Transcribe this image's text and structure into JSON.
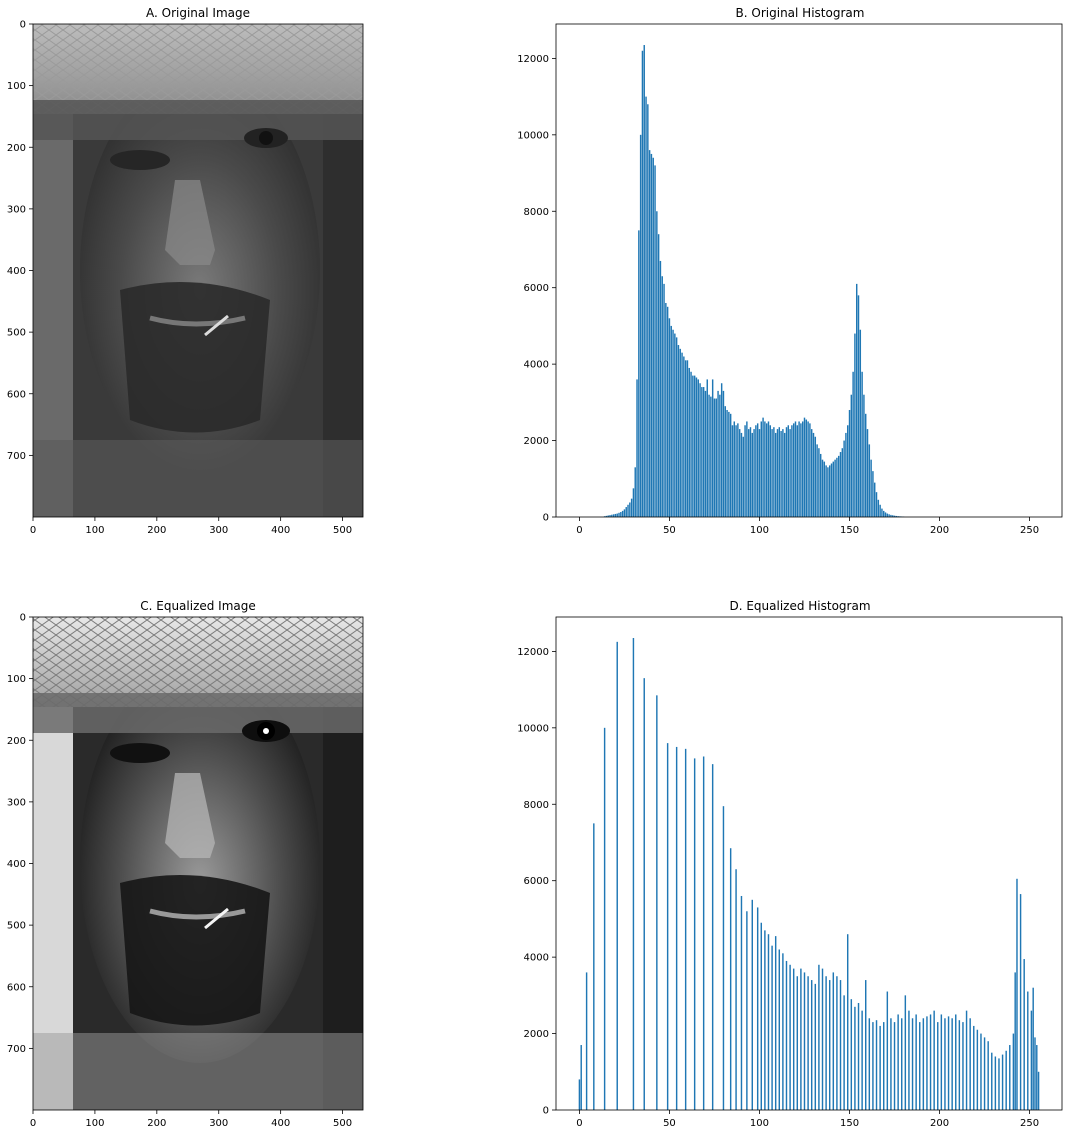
{
  "chart_data": [
    {
      "panel": "A",
      "type": "image",
      "title": "A. Original Image",
      "x_ticks": [
        0,
        100,
        200,
        300,
        400,
        500
      ],
      "y_ticks": [
        0,
        100,
        200,
        300,
        400,
        500,
        600,
        700
      ],
      "xlim": [
        0,
        533
      ],
      "ylim": [
        800,
        0
      ],
      "content": "grayscale-portrait-low-contrast"
    },
    {
      "panel": "B",
      "type": "bar",
      "title": "B. Original Histogram",
      "x_ticks": [
        0,
        50,
        100,
        150,
        200,
        250
      ],
      "y_ticks": [
        0,
        2000,
        4000,
        6000,
        8000,
        10000,
        12000
      ],
      "xlim": [
        -13,
        268
      ],
      "ylim": [
        0,
        12900
      ],
      "color": "#1f77b4",
      "bars": [
        [
          14,
          20
        ],
        [
          15,
          30
        ],
        [
          16,
          40
        ],
        [
          17,
          50
        ],
        [
          18,
          60
        ],
        [
          19,
          70
        ],
        [
          20,
          80
        ],
        [
          21,
          90
        ],
        [
          22,
          110
        ],
        [
          23,
          130
        ],
        [
          24,
          160
        ],
        [
          25,
          200
        ],
        [
          26,
          260
        ],
        [
          27,
          320
        ],
        [
          28,
          380
        ],
        [
          29,
          480
        ],
        [
          30,
          750
        ],
        [
          31,
          1300
        ],
        [
          32,
          3600
        ],
        [
          33,
          7500
        ],
        [
          34,
          10000
        ],
        [
          35,
          12200
        ],
        [
          36,
          12350
        ],
        [
          37,
          11000
        ],
        [
          38,
          10800
        ],
        [
          39,
          9600
        ],
        [
          40,
          9500
        ],
        [
          41,
          9400
        ],
        [
          42,
          9200
        ],
        [
          43,
          8000
        ],
        [
          44,
          7400
        ],
        [
          45,
          6700
        ],
        [
          46,
          6300
        ],
        [
          47,
          6100
        ],
        [
          48,
          5600
        ],
        [
          49,
          5500
        ],
        [
          50,
          5200
        ],
        [
          51,
          5000
        ],
        [
          52,
          4900
        ],
        [
          53,
          4800
        ],
        [
          54,
          4700
        ],
        [
          55,
          4500
        ],
        [
          56,
          4400
        ],
        [
          57,
          4300
        ],
        [
          58,
          4200
        ],
        [
          59,
          4100
        ],
        [
          60,
          4100
        ],
        [
          61,
          3900
        ],
        [
          62,
          3800
        ],
        [
          63,
          3700
        ],
        [
          64,
          3700
        ],
        [
          65,
          3650
        ],
        [
          66,
          3600
        ],
        [
          67,
          3500
        ],
        [
          68,
          3400
        ],
        [
          69,
          3400
        ],
        [
          70,
          3300
        ],
        [
          71,
          3600
        ],
        [
          72,
          3200
        ],
        [
          73,
          3150
        ],
        [
          74,
          3600
        ],
        [
          75,
          3100
        ],
        [
          76,
          3100
        ],
        [
          77,
          3300
        ],
        [
          78,
          3200
        ],
        [
          79,
          3500
        ],
        [
          80,
          3300
        ],
        [
          81,
          2900
        ],
        [
          82,
          2800
        ],
        [
          83,
          2750
        ],
        [
          84,
          2700
        ],
        [
          85,
          2400
        ],
        [
          86,
          2500
        ],
        [
          87,
          2400
        ],
        [
          88,
          2450
        ],
        [
          89,
          2300
        ],
        [
          90,
          2200
        ],
        [
          91,
          2100
        ],
        [
          92,
          2400
        ],
        [
          93,
          2500
        ],
        [
          94,
          2300
        ],
        [
          95,
          2350
        ],
        [
          96,
          2200
        ],
        [
          97,
          2300
        ],
        [
          98,
          2400
        ],
        [
          99,
          2450
        ],
        [
          100,
          2300
        ],
        [
          101,
          2500
        ],
        [
          102,
          2600
        ],
        [
          103,
          2500
        ],
        [
          104,
          2450
        ],
        [
          105,
          2500
        ],
        [
          106,
          2400
        ],
        [
          107,
          2300
        ],
        [
          108,
          2350
        ],
        [
          109,
          2200
        ],
        [
          110,
          2300
        ],
        [
          111,
          2350
        ],
        [
          112,
          2250
        ],
        [
          113,
          2300
        ],
        [
          114,
          2200
        ],
        [
          115,
          2350
        ],
        [
          116,
          2400
        ],
        [
          117,
          2300
        ],
        [
          118,
          2400
        ],
        [
          119,
          2450
        ],
        [
          120,
          2500
        ],
        [
          121,
          2400
        ],
        [
          122,
          2500
        ],
        [
          123,
          2450
        ],
        [
          124,
          2500
        ],
        [
          125,
          2600
        ],
        [
          126,
          2550
        ],
        [
          127,
          2500
        ],
        [
          128,
          2450
        ],
        [
          129,
          2300
        ],
        [
          130,
          2200
        ],
        [
          131,
          2100
        ],
        [
          132,
          1900
        ],
        [
          133,
          1800
        ],
        [
          134,
          1650
        ],
        [
          135,
          1500
        ],
        [
          136,
          1450
        ],
        [
          137,
          1350
        ],
        [
          138,
          1300
        ],
        [
          139,
          1350
        ],
        [
          140,
          1400
        ],
        [
          141,
          1450
        ],
        [
          142,
          1500
        ],
        [
          143,
          1550
        ],
        [
          144,
          1600
        ],
        [
          145,
          1700
        ],
        [
          146,
          1800
        ],
        [
          147,
          2000
        ],
        [
          148,
          2200
        ],
        [
          149,
          2400
        ],
        [
          150,
          2800
        ],
        [
          151,
          3200
        ],
        [
          152,
          3800
        ],
        [
          153,
          4800
        ],
        [
          154,
          6100
        ],
        [
          155,
          5800
        ],
        [
          156,
          4900
        ],
        [
          157,
          3800
        ],
        [
          158,
          3200
        ],
        [
          159,
          2700
        ],
        [
          160,
          2300
        ],
        [
          161,
          1900
        ],
        [
          162,
          1500
        ],
        [
          163,
          1200
        ],
        [
          164,
          900
        ],
        [
          165,
          650
        ],
        [
          166,
          450
        ],
        [
          167,
          320
        ],
        [
          168,
          220
        ],
        [
          169,
          160
        ],
        [
          170,
          120
        ],
        [
          171,
          90
        ],
        [
          172,
          70
        ],
        [
          173,
          55
        ],
        [
          174,
          45
        ],
        [
          175,
          35
        ],
        [
          176,
          28
        ],
        [
          177,
          22
        ],
        [
          178,
          18
        ],
        [
          179,
          14
        ],
        [
          180,
          10
        ]
      ]
    },
    {
      "panel": "C",
      "type": "image",
      "title": "C. Equalized Image",
      "x_ticks": [
        0,
        100,
        200,
        300,
        400,
        500
      ],
      "y_ticks": [
        0,
        100,
        200,
        300,
        400,
        500,
        600,
        700
      ],
      "xlim": [
        0,
        533
      ],
      "ylim": [
        800,
        0
      ],
      "content": "grayscale-portrait-equalized"
    },
    {
      "panel": "D",
      "type": "bar",
      "title": "D. Equalized Histogram",
      "x_ticks": [
        0,
        50,
        100,
        150,
        200,
        250
      ],
      "y_ticks": [
        0,
        2000,
        4000,
        6000,
        8000,
        10000,
        12000
      ],
      "xlim": [
        -13,
        268
      ],
      "ylim": [
        0,
        12900
      ],
      "color": "#1f77b4",
      "bars": [
        [
          0,
          800
        ],
        [
          1,
          1700
        ],
        [
          4,
          3600
        ],
        [
          8,
          7500
        ],
        [
          14,
          10000
        ],
        [
          21,
          12250
        ],
        [
          30,
          12350
        ],
        [
          36,
          11300
        ],
        [
          43,
          10850
        ],
        [
          49,
          9600
        ],
        [
          54,
          9500
        ],
        [
          59,
          9450
        ],
        [
          64,
          9200
        ],
        [
          69,
          9250
        ],
        [
          74,
          9050
        ],
        [
          80,
          7950
        ],
        [
          84,
          6850
        ],
        [
          87,
          6300
        ],
        [
          90,
          5600
        ],
        [
          93,
          5200
        ],
        [
          96,
          5500
        ],
        [
          99,
          5300
        ],
        [
          101,
          4900
        ],
        [
          103,
          4700
        ],
        [
          105,
          4600
        ],
        [
          107,
          4300
        ],
        [
          109,
          4550
        ],
        [
          111,
          4200
        ],
        [
          113,
          4100
        ],
        [
          115,
          3900
        ],
        [
          117,
          3800
        ],
        [
          119,
          3700
        ],
        [
          121,
          3500
        ],
        [
          123,
          3700
        ],
        [
          125,
          3600
        ],
        [
          127,
          3500
        ],
        [
          129,
          3400
        ],
        [
          131,
          3300
        ],
        [
          133,
          3800
        ],
        [
          135,
          3700
        ],
        [
          137,
          3500
        ],
        [
          139,
          3400
        ],
        [
          141,
          3600
        ],
        [
          143,
          3500
        ],
        [
          145,
          3400
        ],
        [
          147,
          3000
        ],
        [
          149,
          4600
        ],
        [
          151,
          2900
        ],
        [
          153,
          2700
        ],
        [
          155,
          2800
        ],
        [
          157,
          2600
        ],
        [
          159,
          3400
        ],
        [
          161,
          2400
        ],
        [
          163,
          2300
        ],
        [
          165,
          2350
        ],
        [
          167,
          2200
        ],
        [
          169,
          2300
        ],
        [
          171,
          3100
        ],
        [
          173,
          2400
        ],
        [
          175,
          2300
        ],
        [
          177,
          2500
        ],
        [
          179,
          2400
        ],
        [
          181,
          3000
        ],
        [
          183,
          2600
        ],
        [
          185,
          2400
        ],
        [
          187,
          2500
        ],
        [
          189,
          2300
        ],
        [
          191,
          2400
        ],
        [
          193,
          2450
        ],
        [
          195,
          2500
        ],
        [
          197,
          2600
        ],
        [
          199,
          2300
        ],
        [
          201,
          2500
        ],
        [
          203,
          2400
        ],
        [
          205,
          2450
        ],
        [
          207,
          2400
        ],
        [
          209,
          2500
        ],
        [
          211,
          2350
        ],
        [
          213,
          2300
        ],
        [
          215,
          2600
        ],
        [
          217,
          2400
        ],
        [
          219,
          2200
        ],
        [
          221,
          2100
        ],
        [
          223,
          2000
        ],
        [
          225,
          1900
        ],
        [
          227,
          1800
        ],
        [
          229,
          1500
        ],
        [
          231,
          1400
        ],
        [
          233,
          1350
        ],
        [
          235,
          1450
        ],
        [
          237,
          1550
        ],
        [
          239,
          1700
        ],
        [
          241,
          2000
        ],
        [
          242,
          3600
        ],
        [
          243,
          6050
        ],
        [
          245,
          5650
        ],
        [
          247,
          3950
        ],
        [
          249,
          3100
        ],
        [
          251,
          2600
        ],
        [
          252,
          3200
        ],
        [
          253,
          1900
        ],
        [
          254,
          1700
        ],
        [
          255,
          1000
        ]
      ]
    }
  ]
}
